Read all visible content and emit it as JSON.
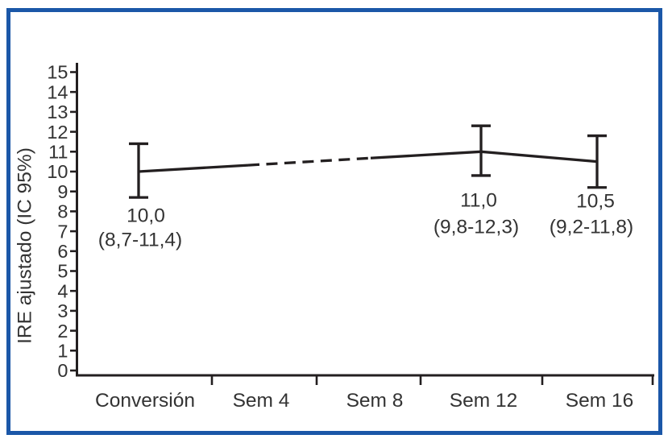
{
  "figure": {
    "background_color": "#ffffff",
    "border_color": "#1b57a8",
    "line_color": "#231f20",
    "text_color": "#333333"
  },
  "chart_data": {
    "type": "line",
    "title": "",
    "xlabel": "",
    "ylabel": "IRE ajustado (IC 95%)",
    "categories": [
      "Conversión",
      "Sem 4",
      "Sem 8",
      "Sem 12",
      "Sem 16"
    ],
    "ylim": [
      0,
      15
    ],
    "ytick_step": 1,
    "grid": false,
    "legend": false,
    "series": [
      {
        "name": "IRE ajustado (IC 95%)",
        "points": [
          {
            "category": "Conversión",
            "value": 10.0,
            "ci_low": 8.7,
            "ci_high": 11.4,
            "value_label": "10,0",
            "ci_label": "(8,7-11,4)"
          },
          {
            "category": "Sem 4",
            "value": null,
            "ci_low": null,
            "ci_high": null,
            "value_label": "",
            "ci_label": ""
          },
          {
            "category": "Sem 8",
            "value": null,
            "ci_low": null,
            "ci_high": null,
            "value_label": "",
            "ci_label": ""
          },
          {
            "category": "Sem 12",
            "value": 11.0,
            "ci_low": 9.8,
            "ci_high": 12.3,
            "value_label": "11,0",
            "ci_label": "(9,8-12,3)"
          },
          {
            "category": "Sem 16",
            "value": 10.5,
            "ci_low": 9.2,
            "ci_high": 11.8,
            "value_label": "10,5",
            "ci_label": "(9,2-11,8)"
          }
        ],
        "segments": [
          {
            "from": "Conversión",
            "to": "Sem 4",
            "style": "solid"
          },
          {
            "from": "Sem 4",
            "to": "Sem 8",
            "style": "dashed"
          },
          {
            "from": "Sem 8",
            "to": "Sem 12",
            "style": "solid"
          },
          {
            "from": "Sem 12",
            "to": "Sem 16",
            "style": "solid"
          }
        ]
      }
    ]
  }
}
